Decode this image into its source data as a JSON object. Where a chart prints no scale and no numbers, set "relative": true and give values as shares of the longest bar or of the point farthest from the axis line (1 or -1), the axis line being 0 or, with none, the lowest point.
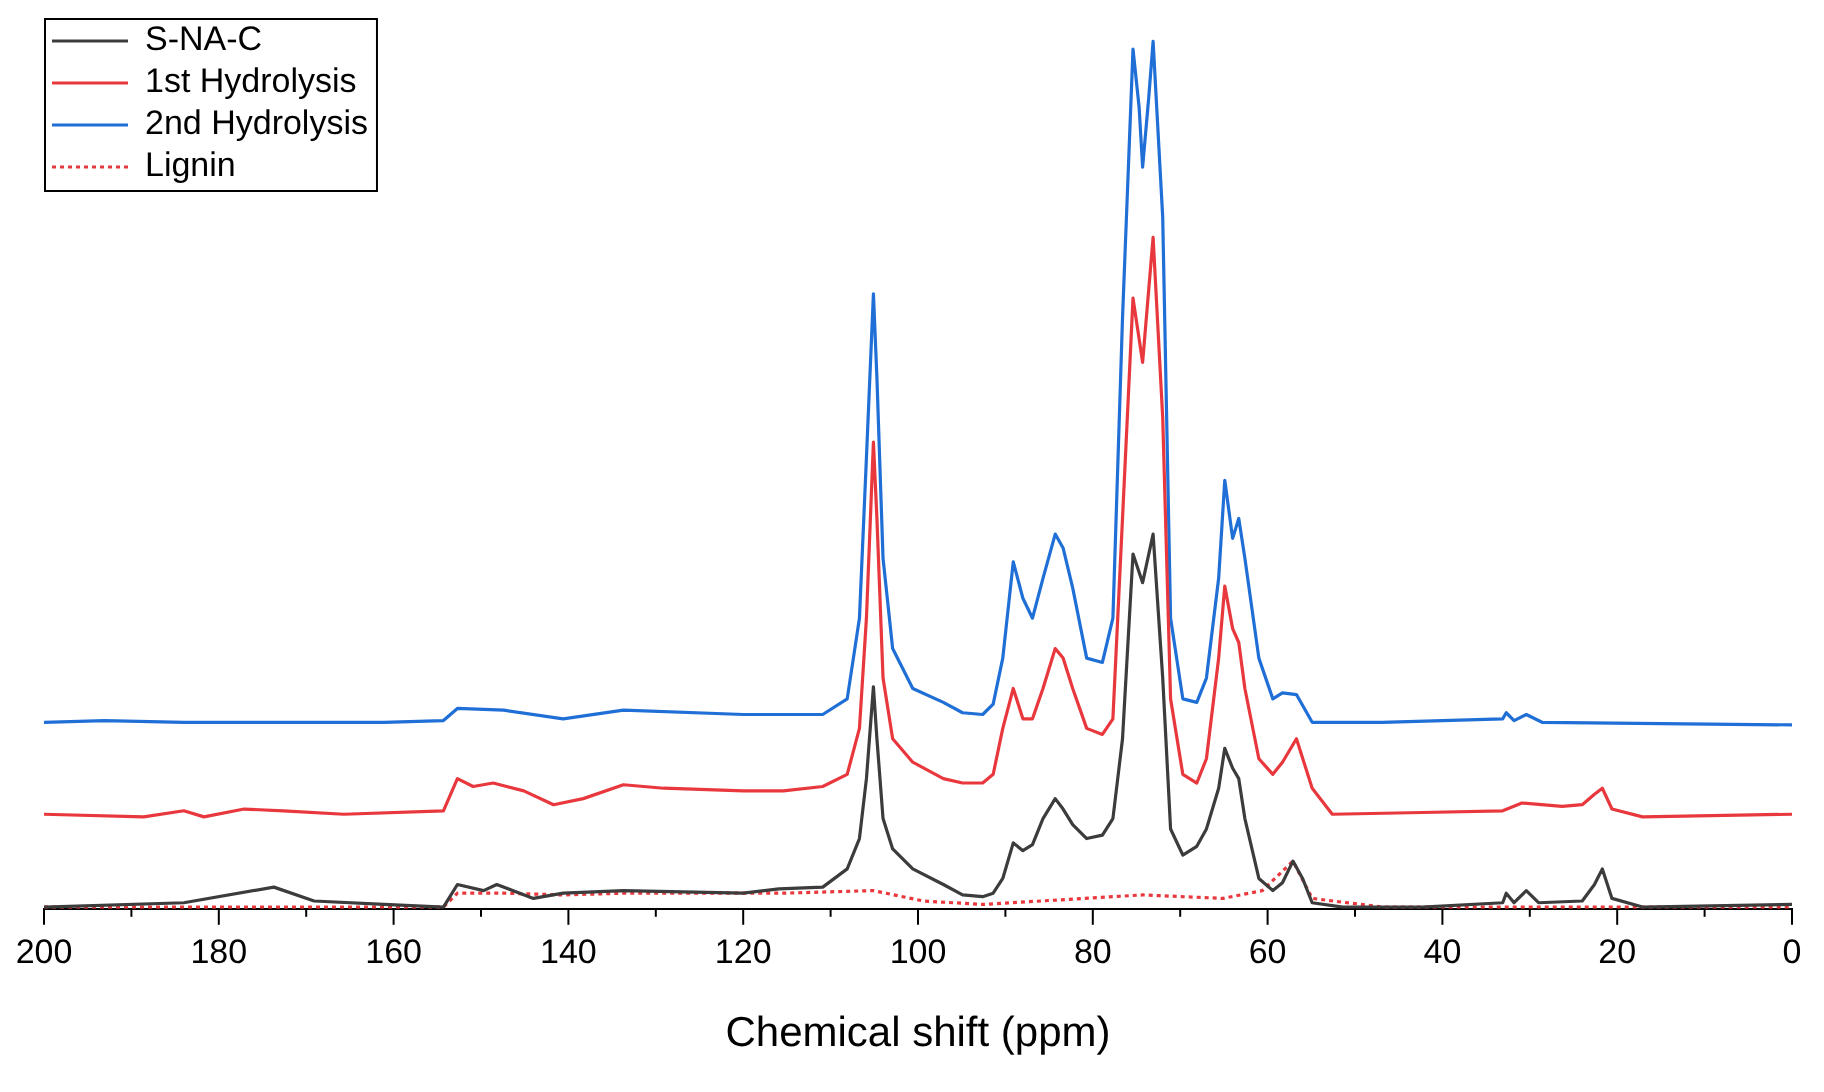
{
  "chart_data": {
    "type": "line",
    "relative": true,
    "xlabel": "Chemical shift (ppm)",
    "xlim": [
      200,
      0
    ],
    "xticks": [
      0,
      {
        "value": 10,
        "label": null
      },
      20,
      {
        "value": 30,
        "label": null
      },
      40,
      {
        "value": 50,
        "label": null
      },
      60,
      {
        "value": 70,
        "label": null
      },
      80,
      {
        "value": 90,
        "label": null
      },
      100,
      {
        "value": 110,
        "label": null
      },
      120,
      {
        "value": 130,
        "label": null
      },
      140,
      {
        "value": 150,
        "label": null
      },
      160,
      {
        "value": 170,
        "label": null
      },
      180,
      {
        "value": 190,
        "label": null
      },
      200
    ],
    "legend": "top left",
    "grid": false,
    "marker": "none",
    "series": [
      {
        "name": "S-NA-C",
        "color": "#3c3c3c",
        "line_style": "solid",
        "x": [
          200,
          184,
          173.7,
          169.1,
          161.1,
          154.3,
          152.7,
          149.7,
          148.2,
          144,
          140.6,
          133.7,
          120,
          115.9,
          110.9,
          108.1,
          106.7,
          105.9,
          105.1,
          104.7,
          104,
          102.9,
          100.6,
          97.1,
          94.9,
          92.6,
          91.4,
          90.3,
          89.1,
          88,
          86.9,
          85.7,
          84.3,
          83.4,
          82.3,
          80.7,
          78.9,
          77.7,
          76.6,
          75.4,
          74.3,
          73.1,
          72,
          71.1,
          69.7,
          68.1,
          67,
          65.6,
          64.9,
          64,
          63.3,
          62.6,
          61,
          59.4,
          58.3,
          57.1,
          56,
          54.9,
          51.4,
          42.3,
          33.1,
          32.7,
          31.8,
          30.4,
          29,
          24,
          22.6,
          21.7,
          20.6,
          17.1,
          0
        ],
        "values": [
          0.002,
          0.007,
          0.025,
          0.009,
          0.005,
          0.002,
          0.028,
          0.021,
          0.028,
          0.012,
          0.018,
          0.021,
          0.018,
          0.023,
          0.025,
          0.046,
          0.081,
          0.15,
          0.256,
          0.196,
          0.104,
          0.069,
          0.046,
          0.028,
          0.016,
          0.014,
          0.018,
          0.035,
          0.076,
          0.067,
          0.074,
          0.104,
          0.127,
          0.115,
          0.097,
          0.081,
          0.085,
          0.104,
          0.196,
          0.409,
          0.376,
          0.432,
          0.266,
          0.092,
          0.062,
          0.072,
          0.092,
          0.139,
          0.185,
          0.162,
          0.15,
          0.104,
          0.035,
          0.021,
          0.03,
          0.055,
          0.035,
          0.007,
          0.002,
          0.002,
          0.007,
          0.018,
          0.007,
          0.021,
          0.007,
          0.009,
          0.028,
          0.046,
          0.012,
          0.002,
          0.005
        ]
      },
      {
        "name": "1st Hydrolysis",
        "color": "#e8383d",
        "line_style": "solid",
        "x": [
          200,
          188.6,
          184,
          181.7,
          177.1,
          172.6,
          165.7,
          154.3,
          152.7,
          150.9,
          148.6,
          145.1,
          141.7,
          138.3,
          133.7,
          129.1,
          120,
          115.4,
          110.9,
          108.1,
          106.7,
          105.9,
          105.1,
          104.7,
          104,
          102.9,
          100.6,
          97.1,
          94.9,
          92.6,
          91.4,
          90.3,
          89.1,
          88,
          86.9,
          85.7,
          84.3,
          83.4,
          82.3,
          80.7,
          78.9,
          77.7,
          76.6,
          75.4,
          74.3,
          73.1,
          72,
          71.1,
          69.7,
          68.1,
          67,
          65.6,
          64.9,
          64,
          63.3,
          62.6,
          61,
          59.4,
          58.3,
          56.7,
          54.9,
          52.6,
          42.3,
          33.1,
          30.9,
          26.3,
          24,
          22.6,
          21.7,
          20.6,
          17.1,
          0
        ],
        "values": [
          0.109,
          0.106,
          0.113,
          0.106,
          0.115,
          0.113,
          0.109,
          0.113,
          0.15,
          0.141,
          0.145,
          0.136,
          0.12,
          0.127,
          0.143,
          0.139,
          0.136,
          0.136,
          0.141,
          0.155,
          0.208,
          0.335,
          0.538,
          0.45,
          0.266,
          0.196,
          0.169,
          0.15,
          0.145,
          0.145,
          0.155,
          0.208,
          0.254,
          0.219,
          0.219,
          0.254,
          0.3,
          0.289,
          0.254,
          0.208,
          0.201,
          0.219,
          0.45,
          0.704,
          0.63,
          0.774,
          0.566,
          0.242,
          0.155,
          0.145,
          0.173,
          0.289,
          0.372,
          0.323,
          0.307,
          0.254,
          0.173,
          0.155,
          0.169,
          0.196,
          0.139,
          0.109,
          0.111,
          0.113,
          0.122,
          0.118,
          0.12,
          0.132,
          0.139,
          0.115,
          0.106,
          0.109
        ]
      },
      {
        "name": "2nd Hydrolysis",
        "color": "#1f6fd6",
        "line_style": "solid",
        "x": [
          200,
          193.1,
          184,
          172.6,
          161.1,
          154.3,
          152.7,
          147.4,
          140.6,
          133.7,
          120,
          110.9,
          108.1,
          106.7,
          105.9,
          105.1,
          104.7,
          104,
          102.9,
          100.6,
          97.1,
          94.9,
          92.6,
          91.4,
          90.3,
          89.1,
          88,
          86.9,
          85.7,
          84.3,
          83.4,
          82.3,
          80.7,
          78.9,
          77.7,
          76.6,
          75.4,
          74.7,
          74.3,
          73.6,
          73.1,
          72,
          71.1,
          69.7,
          68.1,
          67,
          65.6,
          64.9,
          64,
          63.3,
          62.6,
          61,
          59.4,
          58.3,
          56.7,
          54.9,
          46.9,
          33.1,
          32.7,
          31.8,
          30.4,
          28.6,
          0
        ],
        "values": [
          0.215,
          0.217,
          0.215,
          0.215,
          0.215,
          0.217,
          0.231,
          0.229,
          0.219,
          0.229,
          0.224,
          0.224,
          0.242,
          0.335,
          0.52,
          0.709,
          0.612,
          0.404,
          0.3,
          0.254,
          0.238,
          0.226,
          0.224,
          0.236,
          0.289,
          0.4,
          0.358,
          0.335,
          0.381,
          0.432,
          0.416,
          0.37,
          0.289,
          0.284,
          0.335,
          0.681,
          0.991,
          0.924,
          0.855,
          0.935,
          1,
          0.797,
          0.335,
          0.242,
          0.238,
          0.266,
          0.381,
          0.494,
          0.427,
          0.45,
          0.404,
          0.289,
          0.242,
          0.249,
          0.247,
          0.215,
          0.215,
          0.219,
          0.226,
          0.217,
          0.224,
          0.215,
          0.212
        ]
      },
      {
        "name": "Lignin",
        "color": "#e8383d",
        "line_style": "dotted",
        "x": [
          200,
          154.3,
          152.7,
          147.4,
          140.6,
          133.7,
          115.4,
          105.1,
          99.4,
          92.6,
          74.3,
          65.1,
          60.6,
          57.1,
          54.9,
          46.9,
          0
        ],
        "values": [
          0.002,
          0.002,
          0.018,
          0.018,
          0.016,
          0.018,
          0.018,
          0.021,
          0.009,
          0.005,
          0.016,
          0.012,
          0.021,
          0.055,
          0.012,
          0.002,
          0.002
        ]
      }
    ]
  }
}
